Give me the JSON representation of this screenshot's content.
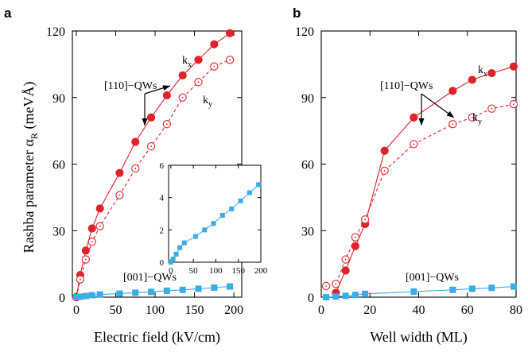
{
  "colors": {
    "red": "#e0222b",
    "blue": "#3aace6",
    "axis": "#000000"
  },
  "chart_data": [
    {
      "id": "a",
      "type": "line",
      "panel_label": "a",
      "xlabel": "Electric field (kV/cm)",
      "ylabel": "Rashba parameter α",
      "ylabel_sub": "R",
      "ylabel_unit": " (meVÅ)",
      "xlim": [
        -5,
        210
      ],
      "ylim": [
        0,
        120
      ],
      "xticks": [
        0,
        50,
        100,
        150,
        200
      ],
      "yticks": [
        0,
        30,
        60,
        90,
        120
      ],
      "series": [
        {
          "name": "[110]-QWs kx",
          "style": "solid-filled",
          "color": "red",
          "x": [
            0,
            5,
            12,
            20,
            30,
            55,
            75,
            95,
            115,
            135,
            155,
            175,
            195
          ],
          "y": [
            0,
            10,
            21,
            31,
            40,
            56,
            70,
            81,
            91,
            100,
            107,
            114,
            119
          ]
        },
        {
          "name": "[110]-QWs ky",
          "style": "dashed-open",
          "color": "red",
          "x": [
            0,
            5,
            12,
            20,
            30,
            55,
            75,
            95,
            115,
            135,
            155,
            175,
            195
          ],
          "y": [
            0,
            8,
            17,
            25,
            32,
            46,
            58,
            68,
            78,
            90,
            97,
            104,
            107
          ]
        },
        {
          "name": "[001]-QWs",
          "style": "solid-square",
          "color": "blue",
          "x": [
            0,
            5,
            12,
            20,
            30,
            55,
            75,
            95,
            115,
            135,
            155,
            175,
            195
          ],
          "y": [
            0,
            0.2,
            0.5,
            0.9,
            1.2,
            1.6,
            2.0,
            2.4,
            2.9,
            3.3,
            3.8,
            4.3,
            4.8
          ]
        }
      ],
      "annotations": [
        {
          "text": "[110]−QWs",
          "name": "label-110-qws"
        },
        {
          "text": "k",
          "sub": "x",
          "name": "label-kx"
        },
        {
          "text": "k",
          "sub": "y",
          "name": "label-ky"
        },
        {
          "text": "[001]−QWs",
          "name": "label-001-qws"
        }
      ],
      "inset": {
        "xlim": [
          -5,
          200
        ],
        "ylim": [
          0,
          6
        ],
        "xticks": [
          0,
          50,
          100,
          150,
          200
        ],
        "yticks": [
          0,
          2,
          4,
          6
        ],
        "series": {
          "name": "[001]-QWs",
          "color": "blue",
          "x": [
            0,
            5,
            12,
            20,
            30,
            55,
            75,
            95,
            115,
            135,
            155,
            175,
            195
          ],
          "y": [
            0,
            0.2,
            0.5,
            0.9,
            1.2,
            1.6,
            2.0,
            2.4,
            2.9,
            3.3,
            3.8,
            4.3,
            4.8
          ]
        }
      }
    },
    {
      "id": "b",
      "type": "line",
      "panel_label": "b",
      "xlabel": "Well width (ML)",
      "ylabel": "",
      "xlim": [
        0,
        80
      ],
      "ylim": [
        0,
        120
      ],
      "xticks": [
        0,
        20,
        40,
        60,
        80
      ],
      "yticks": [
        0,
        30,
        60,
        90,
        120
      ],
      "series": [
        {
          "name": "[110]-QWs kx",
          "style": "solid-filled",
          "color": "red",
          "x": [
            6,
            10,
            14,
            18,
            26,
            38,
            54,
            62,
            70,
            79
          ],
          "y": [
            2,
            12,
            23,
            33,
            66,
            81,
            93,
            98,
            101,
            104
          ]
        },
        {
          "name": "[110]-QWs ky",
          "style": "dashed-open",
          "color": "red",
          "x": [
            2,
            6,
            10,
            14,
            18,
            26,
            38,
            54,
            62,
            70,
            79
          ],
          "y": [
            5,
            6,
            17,
            27,
            35,
            57,
            69,
            78,
            81,
            85,
            87
          ]
        },
        {
          "name": "[001]-QWs",
          "style": "solid-square",
          "color": "blue",
          "x": [
            2,
            6,
            10,
            14,
            18,
            38,
            54,
            62,
            70,
            79
          ],
          "y": [
            0,
            0.3,
            0.6,
            1.0,
            1.5,
            2.5,
            3.3,
            3.8,
            4.2,
            4.8
          ]
        }
      ],
      "annotations": [
        {
          "text": "[110]−QWs",
          "name": "label-110-qws"
        },
        {
          "text": "k",
          "sub": "x",
          "name": "label-kx"
        },
        {
          "text": "k",
          "sub": "y",
          "name": "label-ky"
        },
        {
          "text": "[001]−QWs",
          "name": "label-001-qws"
        }
      ]
    }
  ]
}
